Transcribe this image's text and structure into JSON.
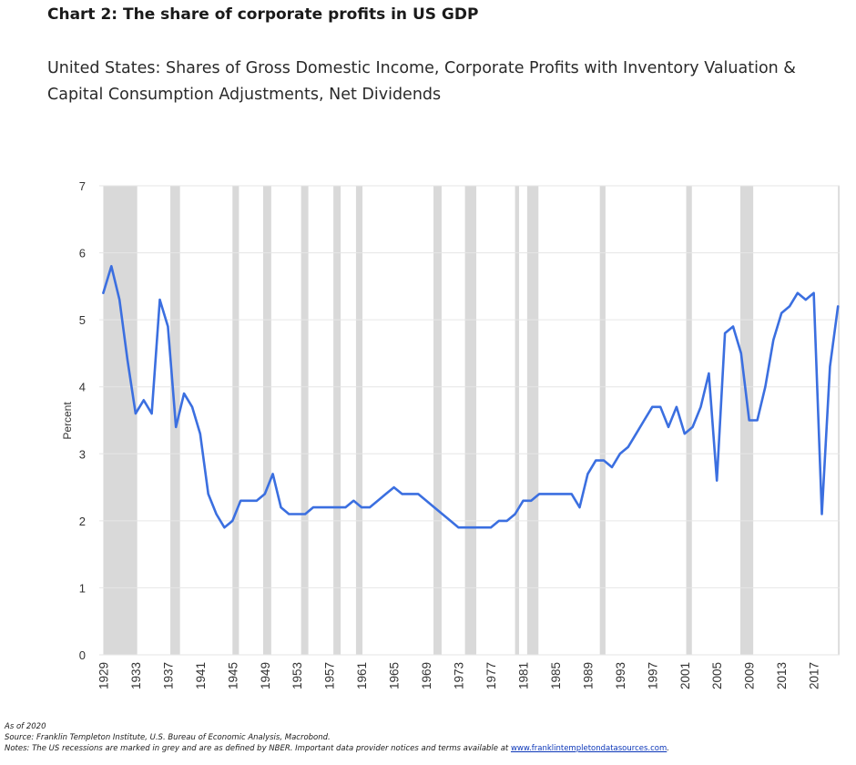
{
  "header": {
    "title": "Chart 2: The share of corporate profits in US GDP",
    "subtitle": "United States: Shares of Gross Domestic Income, Corporate Profits with Inventory Valuation & Capital Consumption Adjustments, Net Dividends"
  },
  "footer": {
    "as_of": "As of 2020",
    "source": "Source: Franklin Templeton Institute, U.S. Bureau of Economic Analysis, Macrobond.",
    "notes": "Notes: The US recessions are marked in grey and are as defined by NBER. Important data provider notices and terms available at",
    "link_text": "www.franklintempletondatasources.com",
    "link_suffix": "."
  },
  "chart_data": {
    "type": "line",
    "ylabel": "Percent",
    "xlabel": "",
    "ylim": [
      0,
      7
    ],
    "yticks": [
      0,
      1,
      2,
      3,
      4,
      5,
      6,
      7
    ],
    "xlim": [
      1928.5,
      2020.2
    ],
    "xticks": [
      1929,
      1933,
      1937,
      1941,
      1945,
      1949,
      1953,
      1957,
      1961,
      1965,
      1969,
      1973,
      1977,
      1981,
      1985,
      1989,
      1993,
      1997,
      2001,
      2005,
      2009,
      2013,
      2017
    ],
    "grid": "horizontal",
    "line_color": "#3b6fe0",
    "recession_color": "#d9d9d9",
    "recessions": [
      [
        1929.0,
        1933.2
      ],
      [
        1937.3,
        1938.5
      ],
      [
        1945.0,
        1945.8
      ],
      [
        1948.8,
        1949.8
      ],
      [
        1953.5,
        1954.4
      ],
      [
        1957.5,
        1958.4
      ],
      [
        1960.3,
        1961.1
      ],
      [
        1969.9,
        1970.9
      ],
      [
        1973.8,
        1975.2
      ],
      [
        1980.0,
        1980.5
      ],
      [
        1981.5,
        1982.9
      ],
      [
        1990.5,
        1991.2
      ],
      [
        2001.2,
        2001.9
      ],
      [
        2007.9,
        2009.5
      ],
      [
        2020.0,
        2020.4
      ]
    ],
    "series": [
      {
        "x": [
          1929,
          1930,
          1931,
          1932,
          1933,
          1934,
          1935,
          1936,
          1937,
          1938,
          1939,
          1940,
          1941,
          1942,
          1943,
          1944,
          1945,
          1946,
          1947,
          1948,
          1949,
          1950,
          1951,
          1952,
          1953,
          1954,
          1955,
          1956,
          1957,
          1958,
          1959,
          1960,
          1961,
          1962,
          1963,
          1964,
          1965,
          1966,
          1967,
          1968,
          1969,
          1970,
          1971,
          1972,
          1973,
          1974,
          1975,
          1976,
          1977,
          1978,
          1979,
          1980,
          1981,
          1982,
          1983,
          1984,
          1985,
          1986,
          1987,
          1988,
          1989,
          1990,
          1991,
          1992,
          1993,
          1994,
          1995,
          1996,
          1997,
          1998,
          1999,
          2000,
          2001,
          2002,
          2003,
          2004,
          2005,
          2006,
          2007,
          2008,
          2009,
          2010,
          2011,
          2012,
          2013,
          2014,
          2015,
          2016,
          2017,
          2018,
          2019,
          2020
        ],
        "values": [
          5.4,
          5.8,
          5.3,
          4.4,
          3.6,
          3.8,
          3.6,
          5.3,
          4.9,
          3.4,
          3.9,
          3.7,
          3.3,
          2.4,
          2.1,
          1.9,
          2.0,
          2.3,
          2.3,
          2.3,
          2.4,
          2.7,
          2.2,
          2.1,
          2.1,
          2.1,
          2.2,
          2.2,
          2.2,
          2.2,
          2.2,
          2.3,
          2.2,
          2.2,
          2.3,
          2.4,
          2.5,
          2.4,
          2.4,
          2.4,
          2.3,
          2.2,
          2.1,
          2.0,
          1.9,
          1.9,
          1.9,
          1.9,
          1.9,
          2.0,
          2.0,
          2.1,
          2.3,
          2.3,
          2.4,
          2.4,
          2.4,
          2.4,
          2.4,
          2.2,
          2.7,
          2.9,
          2.9,
          2.8,
          3.0,
          3.1,
          3.3,
          3.5,
          3.7,
          3.7,
          3.4,
          3.7,
          3.3,
          3.4,
          3.7,
          4.2,
          2.6,
          4.8,
          4.9,
          4.5,
          3.5,
          3.5,
          4.0,
          4.7,
          5.1,
          5.2,
          5.4,
          5.3,
          5.4,
          2.1,
          4.3,
          5.2
        ]
      }
    ]
  }
}
